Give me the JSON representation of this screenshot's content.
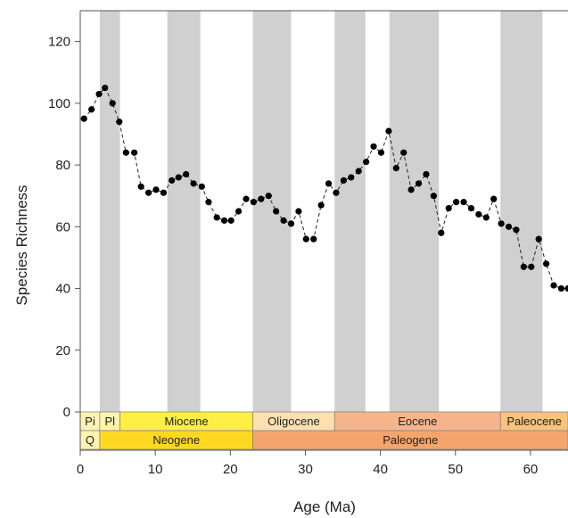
{
  "chart_data": {
    "type": "scatter",
    "xlabel": "Age (Ma)",
    "ylabel": "Species Richness",
    "xlim": [
      0,
      65
    ],
    "ylim": [
      0,
      130
    ],
    "x_ticks": [
      0,
      10,
      20,
      30,
      40,
      50,
      60
    ],
    "y_ticks": [
      0,
      20,
      40,
      60,
      80,
      100,
      120
    ],
    "grid": false,
    "connect_points": "dashed",
    "shaded_intervals": [
      [
        2.6,
        5.3
      ],
      [
        11.6,
        16.0
      ],
      [
        23.0,
        28.1
      ],
      [
        33.9,
        38.0
      ],
      [
        41.2,
        47.8
      ],
      [
        56.0,
        61.6
      ]
    ],
    "series": [
      {
        "x": [
          0.5,
          1.5,
          2.5,
          3.3,
          4.3,
          5.2,
          6.1,
          7.2,
          8.1,
          9.1,
          10.1,
          11.1,
          12.2,
          13.1,
          14.1,
          15.1,
          16.2,
          17.1,
          18.2,
          19.2,
          20.1,
          21.1,
          22.1,
          23.1,
          24.1,
          25.1,
          26.1,
          27.1,
          28.1,
          29.1,
          30.1,
          31.1,
          32.1,
          33.1,
          34.1,
          35.1,
          36.1,
          37.1,
          38.1,
          39.1,
          40.1,
          41.1,
          42.1,
          43.1,
          44.1,
          45.1,
          46.1,
          47.1,
          48.1,
          49.1,
          50.1,
          51.1,
          52.1,
          53.1,
          54.1,
          55.1,
          56.1,
          57.1,
          58.1,
          59.1,
          60.1,
          61.1,
          62.1,
          63.1,
          64.1,
          65.0
        ],
        "y": [
          95,
          98,
          103,
          105,
          100,
          94,
          84,
          84,
          73,
          71,
          72,
          71,
          75,
          76,
          77,
          74,
          73,
          68,
          63,
          62,
          62,
          65,
          69,
          68,
          69,
          70,
          65,
          62,
          61,
          65,
          56,
          56,
          67,
          74,
          71,
          75,
          76,
          78,
          81,
          86,
          84,
          91,
          79,
          84,
          72,
          74,
          77,
          70,
          58,
          66,
          68,
          68,
          66,
          64,
          63,
          69,
          61,
          60,
          59,
          47,
          47,
          56,
          48,
          41,
          40,
          40
        ]
      }
    ]
  },
  "timescale": {
    "epochs": [
      {
        "label": "Pi",
        "start": 0,
        "end": 2.6,
        "color": "#fff2b2"
      },
      {
        "label": "Pl",
        "start": 2.6,
        "end": 5.3,
        "color": "#fff4a8"
      },
      {
        "label": "Miocene",
        "start": 5.3,
        "end": 23.0,
        "color": "#ffee44"
      },
      {
        "label": "Oligocene",
        "start": 23.0,
        "end": 33.9,
        "color": "#fde0b0"
      },
      {
        "label": "Eocene",
        "start": 33.9,
        "end": 56.0,
        "color": "#f7b48a"
      },
      {
        "label": "Paleocene",
        "start": 56.0,
        "end": 66.0,
        "color": "#fbc27a"
      }
    ],
    "periods": [
      {
        "label": "Q",
        "start": 0,
        "end": 2.6,
        "color": "#fff2b2"
      },
      {
        "label": "Neogene",
        "start": 2.6,
        "end": 23.0,
        "color": "#fdd820"
      },
      {
        "label": "Paleogene",
        "start": 23.0,
        "end": 66.0,
        "color": "#f5a56c"
      }
    ]
  }
}
